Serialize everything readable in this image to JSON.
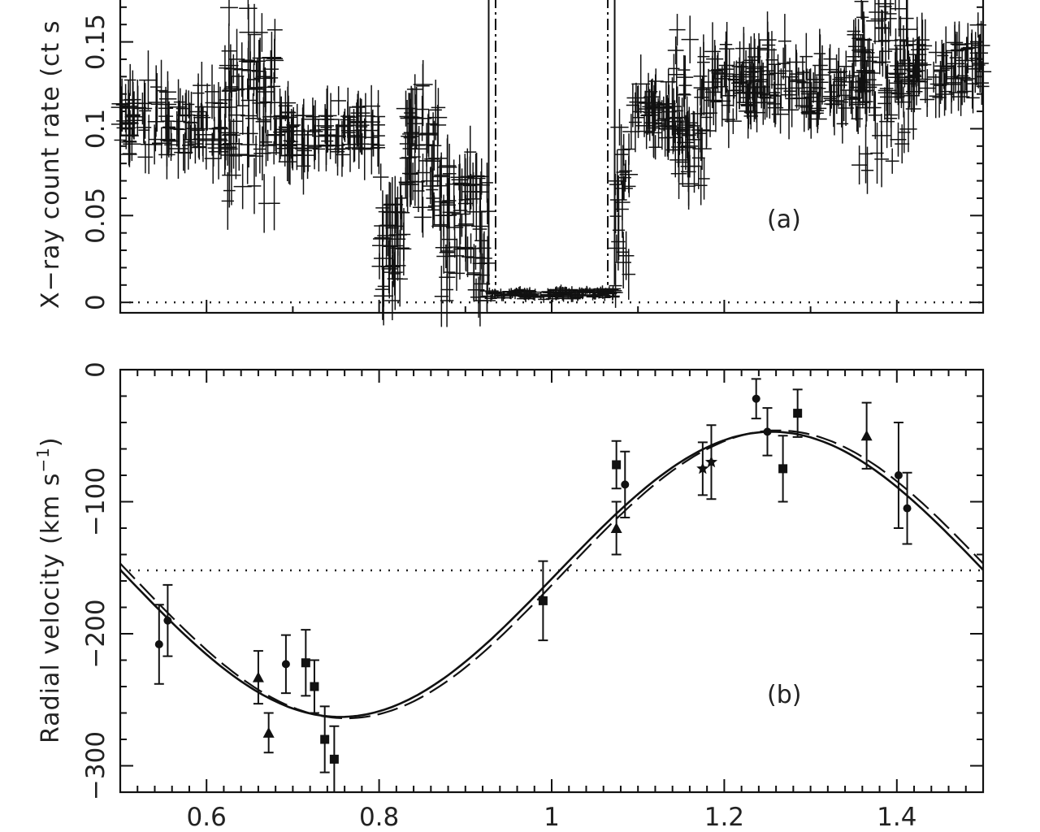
{
  "chart_data": [
    {
      "panel": "a",
      "type": "scatter",
      "annotation": "(a)",
      "ylabel": "X−ray count rate (ct s",
      "xlim": [
        0.5,
        1.5
      ],
      "ylim": [
        -0.006,
        0.176
      ],
      "yticks": [
        0,
        0.05,
        0.1,
        0.15
      ],
      "ytick_labels": [
        "0",
        "0.05",
        "0.1",
        "0.15"
      ],
      "reference_line_y": 0,
      "eclipse_edges_solid": [
        0.927,
        1.073
      ],
      "eclipse_edges_dashdot": [
        0.935,
        1.065
      ],
      "segments": [
        {
          "x_range": [
            0.5,
            0.62
          ],
          "level": 0.105,
          "scatter": 0.015
        },
        {
          "x_range": [
            0.62,
            0.68
          ],
          "level": 0.115,
          "scatter": 0.035
        },
        {
          "x_range": [
            0.68,
            0.8
          ],
          "level": 0.098,
          "scatter": 0.012
        },
        {
          "x_range": [
            0.8,
            0.83
          ],
          "level": 0.035,
          "scatter": 0.025
        },
        {
          "x_range": [
            0.83,
            0.87
          ],
          "level": 0.085,
          "scatter": 0.03
        },
        {
          "x_range": [
            0.87,
            0.927
          ],
          "level": 0.045,
          "scatter": 0.03
        },
        {
          "x_range": [
            0.927,
            1.073
          ],
          "level": 0.005,
          "scatter": 0.002
        },
        {
          "x_range": [
            1.073,
            1.09
          ],
          "level": 0.06,
          "scatter": 0.03
        },
        {
          "x_range": [
            1.09,
            1.14
          ],
          "level": 0.11,
          "scatter": 0.015
        },
        {
          "x_range": [
            1.14,
            1.18
          ],
          "level": 0.105,
          "scatter": 0.035
        },
        {
          "x_range": [
            1.18,
            1.35
          ],
          "level": 0.125,
          "scatter": 0.015
        },
        {
          "x_range": [
            1.35,
            1.42
          ],
          "level": 0.13,
          "scatter": 0.03
        },
        {
          "x_range": [
            1.42,
            1.5
          ],
          "level": 0.135,
          "scatter": 0.015
        }
      ]
    },
    {
      "panel": "b",
      "type": "scatter",
      "annotation": "(b)",
      "ylabel": "Radial velocity (km s",
      "xlim": [
        0.5,
        1.5
      ],
      "ylim": [
        -320,
        0
      ],
      "xticks": [
        0.6,
        0.8,
        1.0,
        1.2,
        1.4
      ],
      "xtick_labels": [
        "0.6",
        "0.8",
        "1",
        "1.2",
        "1.4"
      ],
      "yticks": [
        0,
        -100,
        -200,
        -300
      ],
      "ytick_labels": [
        "0",
        "−100",
        "−200",
        "−300"
      ],
      "systemic_velocity": -152,
      "fits": [
        {
          "style": "solid",
          "gamma": -155,
          "K": 108,
          "phase_max": 1.255
        },
        {
          "style": "dashed",
          "gamma": -155,
          "K": 109,
          "phase_max": 1.262
        }
      ],
      "points": [
        {
          "x": 0.545,
          "y": -208,
          "err": 30,
          "marker": "circle"
        },
        {
          "x": 0.555,
          "y": -190,
          "err": 27,
          "marker": "circle"
        },
        {
          "x": 0.66,
          "y": -233,
          "err": 20,
          "marker": "triangle"
        },
        {
          "x": 0.672,
          "y": -275,
          "err": 15,
          "marker": "triangle"
        },
        {
          "x": 0.692,
          "y": -223,
          "err": 22,
          "marker": "circle"
        },
        {
          "x": 0.715,
          "y": -222,
          "err": 25,
          "marker": "square"
        },
        {
          "x": 0.725,
          "y": -240,
          "err": 20,
          "marker": "square"
        },
        {
          "x": 0.737,
          "y": -280,
          "err": 25,
          "marker": "square"
        },
        {
          "x": 0.748,
          "y": -295,
          "err": 25,
          "marker": "square"
        },
        {
          "x": 0.99,
          "y": -175,
          "err": 30,
          "marker": "square"
        },
        {
          "x": 1.075,
          "y": -72,
          "err": 18,
          "marker": "square"
        },
        {
          "x": 1.075,
          "y": -120,
          "err": 20,
          "marker": "triangle"
        },
        {
          "x": 1.085,
          "y": -87,
          "err": 25,
          "marker": "circle"
        },
        {
          "x": 1.175,
          "y": -75,
          "err": 20,
          "marker": "star"
        },
        {
          "x": 1.185,
          "y": -70,
          "err": 28,
          "marker": "star"
        },
        {
          "x": 1.237,
          "y": -22,
          "err": 15,
          "marker": "circle"
        },
        {
          "x": 1.25,
          "y": -47,
          "err": 18,
          "marker": "circle"
        },
        {
          "x": 1.268,
          "y": -75,
          "err": 25,
          "marker": "square"
        },
        {
          "x": 1.285,
          "y": -33,
          "err": 18,
          "marker": "square"
        },
        {
          "x": 1.365,
          "y": -50,
          "err": 25,
          "marker": "triangle"
        },
        {
          "x": 1.402,
          "y": -80,
          "err": 40,
          "marker": "circle"
        },
        {
          "x": 1.412,
          "y": -105,
          "err": 27,
          "marker": "circle"
        }
      ]
    }
  ],
  "sup_one": "−1"
}
